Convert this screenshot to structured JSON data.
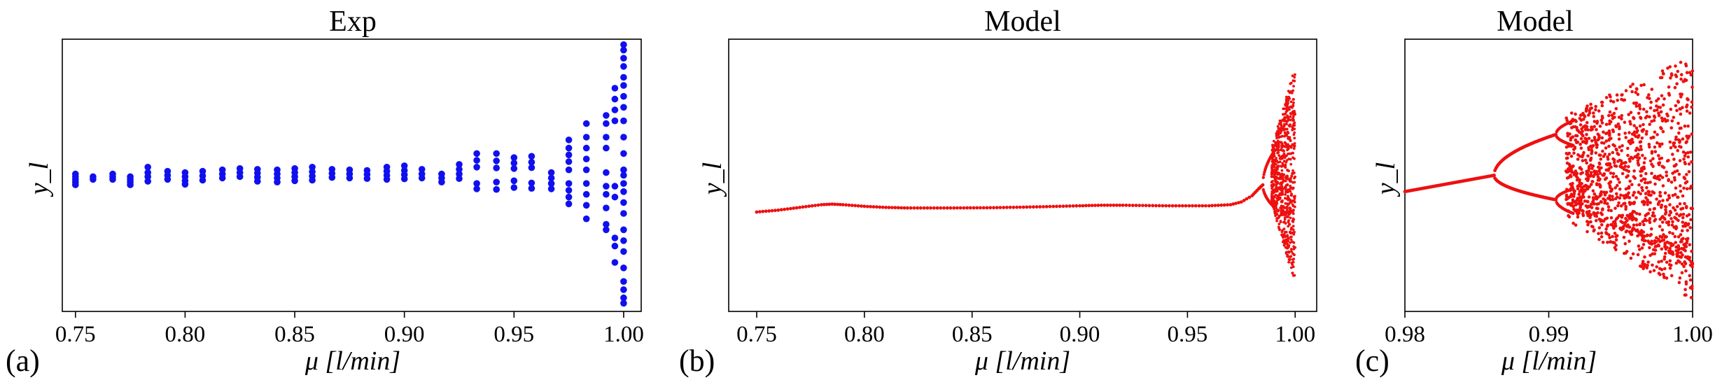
{
  "chart_data": [
    {
      "type": "scatter",
      "panel_tag": "(a)",
      "title": "Exp",
      "xlabel": "μ [l/min]",
      "ylabel": "y_l",
      "xlim": [
        0.744,
        1.008
      ],
      "ylim": [
        0,
        1
      ],
      "xticks": [
        "0.75",
        "0.80",
        "0.85",
        "0.90",
        "0.95",
        "1.00"
      ],
      "xtick_values": [
        0.75,
        0.8,
        0.85,
        0.9,
        0.95,
        1.0
      ],
      "color": "#1010ee",
      "series": [
        {
          "points": [
            [
              0.75,
              0.505
            ],
            [
              0.75,
              0.495
            ],
            [
              0.75,
              0.485
            ],
            [
              0.75,
              0.475
            ],
            [
              0.75,
              0.465
            ],
            [
              0.758,
              0.495
            ],
            [
              0.758,
              0.485
            ],
            [
              0.767,
              0.505
            ],
            [
              0.767,
              0.495
            ],
            [
              0.767,
              0.485
            ],
            [
              0.775,
              0.495
            ],
            [
              0.775,
              0.485
            ],
            [
              0.775,
              0.475
            ],
            [
              0.775,
              0.465
            ],
            [
              0.783,
              0.53
            ],
            [
              0.783,
              0.51
            ],
            [
              0.783,
              0.495
            ],
            [
              0.783,
              0.478
            ],
            [
              0.792,
              0.515
            ],
            [
              0.792,
              0.5
            ],
            [
              0.792,
              0.485
            ],
            [
              0.8,
              0.51
            ],
            [
              0.8,
              0.495
            ],
            [
              0.8,
              0.48
            ],
            [
              0.8,
              0.467
            ],
            [
              0.808,
              0.515
            ],
            [
              0.808,
              0.498
            ],
            [
              0.808,
              0.482
            ],
            [
              0.817,
              0.52
            ],
            [
              0.817,
              0.505
            ],
            [
              0.817,
              0.49
            ],
            [
              0.825,
              0.525
            ],
            [
              0.825,
              0.51
            ],
            [
              0.825,
              0.495
            ],
            [
              0.833,
              0.522
            ],
            [
              0.833,
              0.508
            ],
            [
              0.833,
              0.493
            ],
            [
              0.833,
              0.478
            ],
            [
              0.842,
              0.52
            ],
            [
              0.842,
              0.505
            ],
            [
              0.842,
              0.49
            ],
            [
              0.842,
              0.475
            ],
            [
              0.85,
              0.525
            ],
            [
              0.85,
              0.51
            ],
            [
              0.85,
              0.495
            ],
            [
              0.85,
              0.48
            ],
            [
              0.858,
              0.53
            ],
            [
              0.858,
              0.513
            ],
            [
              0.858,
              0.497
            ],
            [
              0.858,
              0.482
            ],
            [
              0.867,
              0.522
            ],
            [
              0.867,
              0.507
            ],
            [
              0.867,
              0.492
            ],
            [
              0.875,
              0.52
            ],
            [
              0.875,
              0.505
            ],
            [
              0.875,
              0.49
            ],
            [
              0.883,
              0.518
            ],
            [
              0.883,
              0.503
            ],
            [
              0.883,
              0.488
            ],
            [
              0.892,
              0.53
            ],
            [
              0.892,
              0.515
            ],
            [
              0.892,
              0.5
            ],
            [
              0.892,
              0.485
            ],
            [
              0.9,
              0.535
            ],
            [
              0.9,
              0.518
            ],
            [
              0.9,
              0.502
            ],
            [
              0.9,
              0.487
            ],
            [
              0.908,
              0.522
            ],
            [
              0.908,
              0.505
            ],
            [
              0.908,
              0.49
            ],
            [
              0.917,
              0.505
            ],
            [
              0.917,
              0.49
            ],
            [
              0.917,
              0.475
            ],
            [
              0.925,
              0.54
            ],
            [
              0.925,
              0.522
            ],
            [
              0.925,
              0.505
            ],
            [
              0.925,
              0.488
            ],
            [
              0.933,
              0.58
            ],
            [
              0.933,
              0.555
            ],
            [
              0.933,
              0.53
            ],
            [
              0.933,
              0.47
            ],
            [
              0.933,
              0.45
            ],
            [
              0.942,
              0.58
            ],
            [
              0.942,
              0.553
            ],
            [
              0.942,
              0.527
            ],
            [
              0.942,
              0.475
            ],
            [
              0.942,
              0.448
            ],
            [
              0.95,
              0.565
            ],
            [
              0.95,
              0.545
            ],
            [
              0.95,
              0.525
            ],
            [
              0.95,
              0.48
            ],
            [
              0.95,
              0.455
            ],
            [
              0.958,
              0.57
            ],
            [
              0.958,
              0.548
            ],
            [
              0.958,
              0.528
            ],
            [
              0.958,
              0.472
            ],
            [
              0.958,
              0.452
            ],
            [
              0.967,
              0.51
            ],
            [
              0.967,
              0.49
            ],
            [
              0.967,
              0.47
            ],
            [
              0.967,
              0.45
            ],
            [
              0.975,
              0.63
            ],
            [
              0.975,
              0.6
            ],
            [
              0.975,
              0.575
            ],
            [
              0.975,
              0.55
            ],
            [
              0.975,
              0.52
            ],
            [
              0.975,
              0.47
            ],
            [
              0.975,
              0.445
            ],
            [
              0.975,
              0.42
            ],
            [
              0.975,
              0.395
            ],
            [
              0.983,
              0.69
            ],
            [
              0.983,
              0.64
            ],
            [
              0.983,
              0.6
            ],
            [
              0.983,
              0.56
            ],
            [
              0.983,
              0.52
            ],
            [
              0.983,
              0.47
            ],
            [
              0.983,
              0.43
            ],
            [
              0.983,
              0.39
            ],
            [
              0.983,
              0.34
            ],
            [
              0.992,
              0.72
            ],
            [
              0.992,
              0.69
            ],
            [
              0.992,
              0.64
            ],
            [
              0.992,
              0.6
            ],
            [
              0.992,
              0.51
            ],
            [
              0.992,
              0.46
            ],
            [
              0.992,
              0.43
            ],
            [
              0.992,
              0.38
            ],
            [
              0.992,
              0.32
            ],
            [
              0.992,
              0.3
            ],
            [
              0.996,
              0.82
            ],
            [
              0.996,
              0.78
            ],
            [
              0.996,
              0.74
            ],
            [
              0.996,
              0.7
            ],
            [
              0.996,
              0.46
            ],
            [
              0.996,
              0.42
            ],
            [
              0.996,
              0.27
            ],
            [
              0.996,
              0.24
            ],
            [
              0.996,
              0.18
            ],
            [
              1.0,
              0.98
            ],
            [
              1.0,
              0.96
            ],
            [
              1.0,
              0.93
            ],
            [
              1.0,
              0.9
            ],
            [
              1.0,
              0.86
            ],
            [
              1.0,
              0.83
            ],
            [
              1.0,
              0.79
            ],
            [
              1.0,
              0.75
            ],
            [
              1.0,
              0.7
            ],
            [
              1.0,
              0.64
            ],
            [
              1.0,
              0.58
            ],
            [
              1.0,
              0.52
            ],
            [
              1.0,
              0.5
            ],
            [
              1.0,
              0.47
            ],
            [
              1.0,
              0.44
            ],
            [
              1.0,
              0.4
            ],
            [
              1.0,
              0.36
            ],
            [
              1.0,
              0.3
            ],
            [
              1.0,
              0.26
            ],
            [
              1.0,
              0.22
            ],
            [
              1.0,
              0.16
            ],
            [
              1.0,
              0.11
            ],
            [
              1.0,
              0.08
            ],
            [
              1.0,
              0.05
            ],
            [
              1.0,
              0.03
            ]
          ]
        }
      ]
    },
    {
      "type": "scatter",
      "panel_tag": "(b)",
      "title": "Model",
      "xlabel": "μ [l/min]",
      "ylabel": "y_l",
      "xlim": [
        0.737,
        1.01
      ],
      "ylim": [
        0,
        1
      ],
      "xticks": [
        "0.75",
        "0.80",
        "0.85",
        "0.90",
        "0.95",
        "1.00"
      ],
      "xtick_values": [
        0.75,
        0.8,
        0.85,
        0.9,
        0.95,
        1.0
      ],
      "color": "#ee1010",
      "bifurcation": {
        "mu_start": 0.985,
        "mu_chaos": 0.99,
        "mu_end": 1.0
      },
      "series": [
        {
          "name": "",
          "points": [
            [
              0.75,
              0.365
            ],
            [
              0.76,
              0.372
            ],
            [
              0.77,
              0.382
            ],
            [
              0.78,
              0.392
            ],
            [
              0.785,
              0.394
            ],
            [
              0.79,
              0.392
            ],
            [
              0.8,
              0.386
            ],
            [
              0.81,
              0.382
            ],
            [
              0.82,
              0.38
            ],
            [
              0.84,
              0.38
            ],
            [
              0.86,
              0.381
            ],
            [
              0.88,
              0.384
            ],
            [
              0.9,
              0.388
            ],
            [
              0.91,
              0.39
            ],
            [
              0.92,
              0.39
            ],
            [
              0.94,
              0.388
            ],
            [
              0.96,
              0.388
            ],
            [
              0.97,
              0.392
            ],
            [
              0.975,
              0.402
            ],
            [
              0.98,
              0.425
            ],
            [
              0.983,
              0.45
            ],
            [
              0.985,
              0.465
            ]
          ]
        }
      ]
    },
    {
      "type": "scatter",
      "panel_tag": "(c)",
      "title": "Model",
      "xlabel": "μ [l/min]",
      "ylabel": "y_l",
      "xlim": [
        0.98,
        1.0
      ],
      "ylim": [
        0,
        1
      ],
      "xticks": [
        "0.98",
        "0.99",
        "1.00"
      ],
      "xtick_values": [
        0.98,
        0.99,
        1.0
      ],
      "color": "#ee1010",
      "bifurcation": {
        "mu_start": 0.98,
        "mu_split": 0.9862,
        "mu_split2": 0.9905,
        "mu_end": 1.0
      }
    }
  ]
}
